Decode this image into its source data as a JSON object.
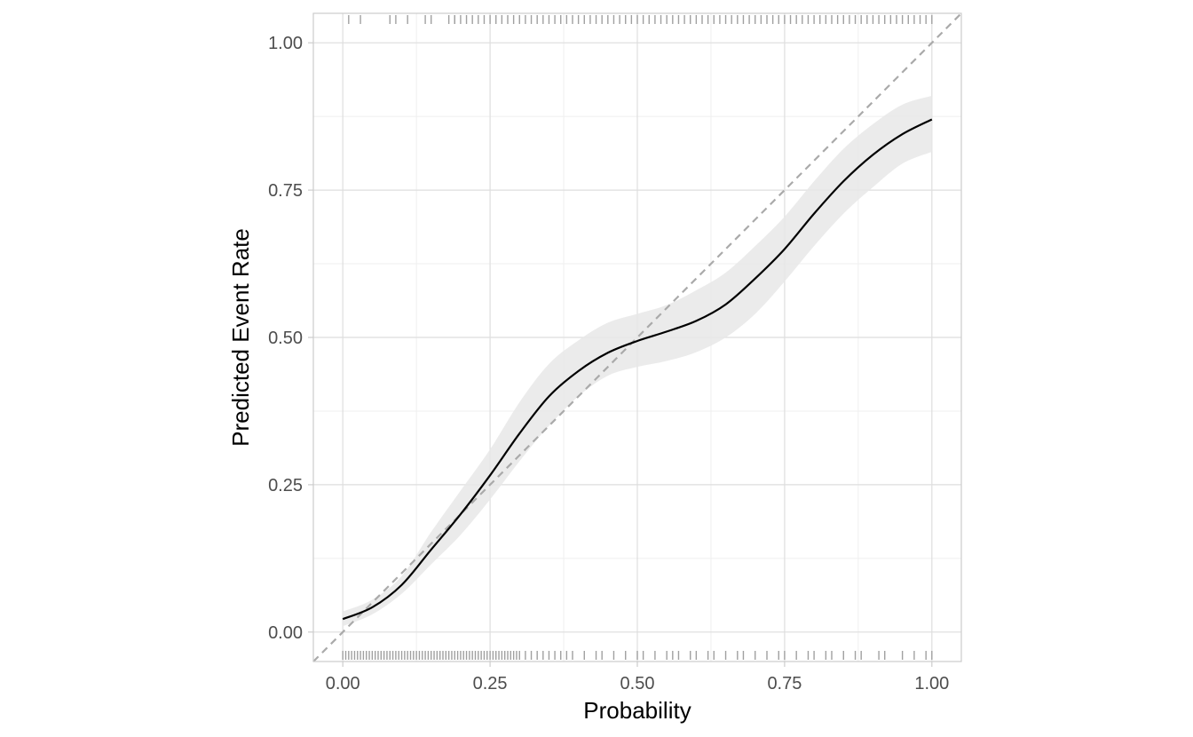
{
  "chart_data": {
    "type": "line",
    "title": "",
    "xlabel": "Probability",
    "ylabel": "Predicted Event Rate",
    "xlim": [
      -0.05,
      1.05
    ],
    "ylim": [
      -0.05,
      1.05
    ],
    "x_ticks": [
      0.0,
      0.25,
      0.5,
      0.75,
      1.0
    ],
    "x_tick_labels": [
      "0.00",
      "0.25",
      "0.50",
      "0.75",
      "1.00"
    ],
    "y_ticks": [
      0.0,
      0.25,
      0.5,
      0.75,
      1.0
    ],
    "y_tick_labels": [
      "0.00",
      "0.25",
      "0.50",
      "0.75",
      "1.00"
    ],
    "grid": true,
    "colors": {
      "curve": "#000000",
      "ribbon": "#e8e8e8",
      "reference": "#aaaaaa",
      "rug": "#a0a0a0",
      "grid_major": "#dedede",
      "grid_minor": "#efefef",
      "border": "#cccccc"
    },
    "series": [
      {
        "name": "calibration_curve",
        "x": [
          0.0,
          0.05,
          0.1,
          0.15,
          0.2,
          0.25,
          0.3,
          0.35,
          0.4,
          0.45,
          0.5,
          0.55,
          0.6,
          0.65,
          0.7,
          0.75,
          0.8,
          0.85,
          0.9,
          0.95,
          1.0
        ],
        "y": [
          0.022,
          0.042,
          0.08,
          0.14,
          0.2,
          0.266,
          0.337,
          0.4,
          0.443,
          0.474,
          0.494,
          0.51,
          0.528,
          0.556,
          0.6,
          0.65,
          0.71,
          0.765,
          0.81,
          0.845,
          0.87
        ],
        "lower": [
          0.01,
          0.03,
          0.065,
          0.115,
          0.165,
          0.225,
          0.29,
          0.35,
          0.4,
          0.435,
          0.45,
          0.46,
          0.475,
          0.5,
          0.54,
          0.595,
          0.655,
          0.71,
          0.755,
          0.795,
          0.815
        ],
        "upper": [
          0.035,
          0.055,
          0.095,
          0.17,
          0.24,
          0.31,
          0.39,
          0.455,
          0.495,
          0.525,
          0.54,
          0.555,
          0.58,
          0.61,
          0.655,
          0.705,
          0.765,
          0.82,
          0.862,
          0.895,
          0.91
        ]
      },
      {
        "name": "reference_diagonal",
        "x": [
          -0.05,
          1.05
        ],
        "y": [
          -0.05,
          1.05
        ]
      }
    ],
    "rug_bottom": [
      0.0,
      0.005,
      0.01,
      0.015,
      0.02,
      0.025,
      0.03,
      0.035,
      0.04,
      0.045,
      0.05,
      0.055,
      0.06,
      0.065,
      0.07,
      0.075,
      0.08,
      0.085,
      0.09,
      0.095,
      0.1,
      0.105,
      0.11,
      0.115,
      0.12,
      0.125,
      0.13,
      0.135,
      0.14,
      0.145,
      0.15,
      0.155,
      0.16,
      0.165,
      0.17,
      0.175,
      0.18,
      0.185,
      0.19,
      0.195,
      0.2,
      0.205,
      0.21,
      0.215,
      0.22,
      0.225,
      0.23,
      0.235,
      0.24,
      0.245,
      0.25,
      0.255,
      0.26,
      0.265,
      0.27,
      0.275,
      0.28,
      0.285,
      0.29,
      0.295,
      0.3,
      0.31,
      0.32,
      0.33,
      0.34,
      0.35,
      0.36,
      0.37,
      0.38,
      0.39,
      0.41,
      0.43,
      0.44,
      0.46,
      0.48,
      0.5,
      0.51,
      0.53,
      0.55,
      0.56,
      0.57,
      0.59,
      0.6,
      0.62,
      0.63,
      0.65,
      0.67,
      0.68,
      0.7,
      0.72,
      0.74,
      0.75,
      0.77,
      0.79,
      0.8,
      0.82,
      0.83,
      0.85,
      0.87,
      0.88,
      0.91,
      0.92,
      0.95,
      0.97,
      0.99,
      1.0
    ],
    "rug_top": [
      0.01,
      0.03,
      0.08,
      0.09,
      0.11,
      0.14,
      0.15,
      0.19,
      0.18,
      0.19,
      0.2,
      0.21,
      0.22,
      0.23,
      0.24,
      0.25,
      0.26,
      0.27,
      0.28,
      0.29,
      0.3,
      0.31,
      0.32,
      0.33,
      0.34,
      0.35,
      0.36,
      0.37,
      0.38,
      0.39,
      0.4,
      0.41,
      0.42,
      0.43,
      0.44,
      0.45,
      0.46,
      0.47,
      0.48,
      0.49,
      0.5,
      0.51,
      0.52,
      0.53,
      0.54,
      0.55,
      0.56,
      0.57,
      0.58,
      0.59,
      0.6,
      0.61,
      0.62,
      0.63,
      0.64,
      0.65,
      0.66,
      0.67,
      0.68,
      0.69,
      0.7,
      0.71,
      0.72,
      0.73,
      0.74,
      0.75,
      0.76,
      0.77,
      0.78,
      0.79,
      0.8,
      0.81,
      0.82,
      0.83,
      0.84,
      0.85,
      0.86,
      0.87,
      0.88,
      0.89,
      0.9,
      0.91,
      0.92,
      0.93,
      0.94,
      0.95,
      0.96,
      0.97,
      0.98,
      0.99,
      1.0
    ]
  }
}
